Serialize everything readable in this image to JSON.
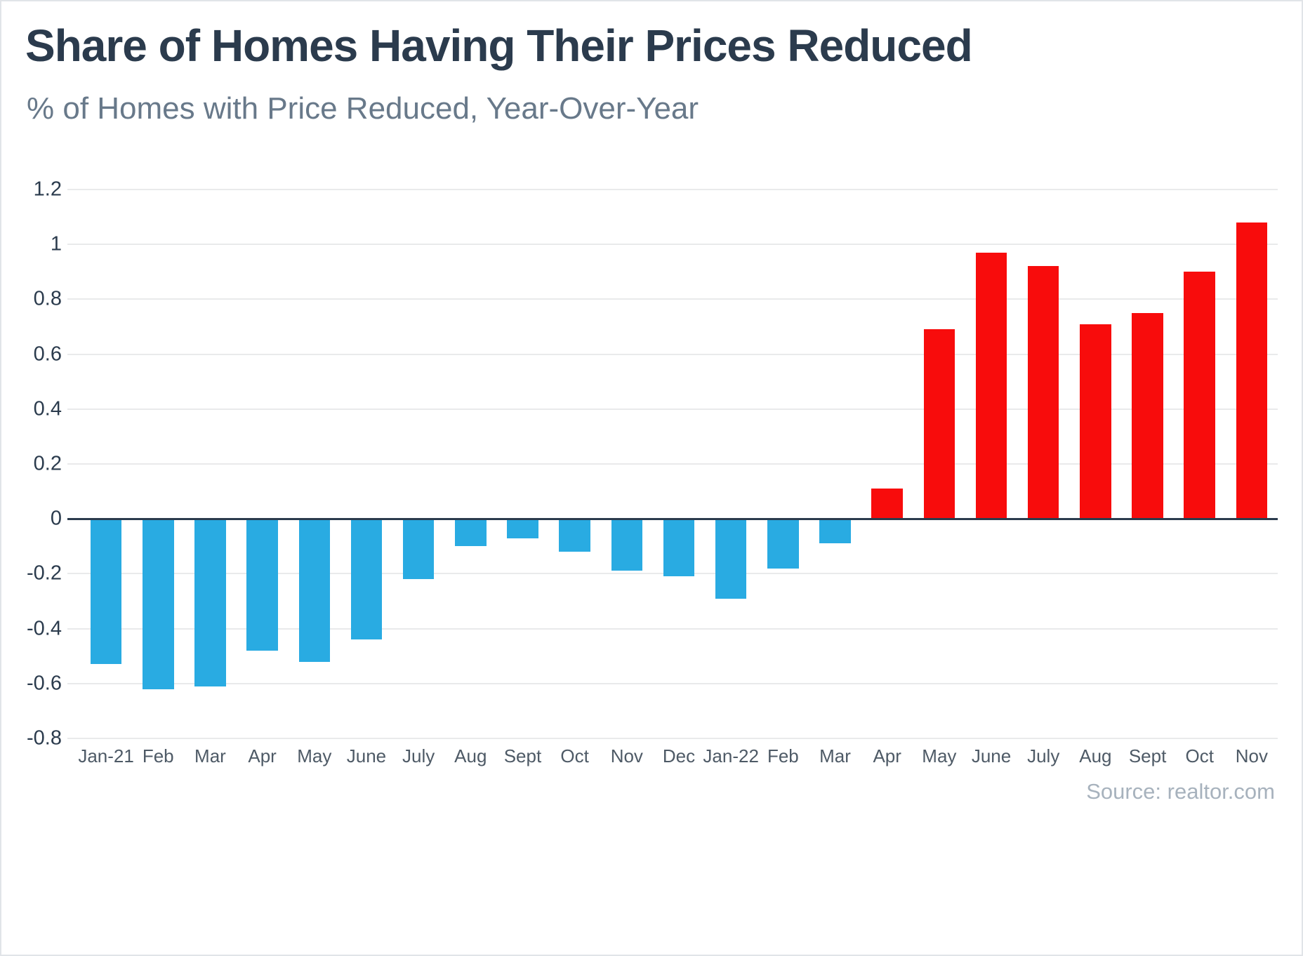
{
  "header": {
    "title": "Share of Homes Having Their Prices Reduced",
    "subtitle": "% of Homes with Price Reduced, Year-Over-Year"
  },
  "footer": {
    "source": "Source: realtor.com"
  },
  "chart_data": {
    "type": "bar",
    "title": "Share of Homes Having Their Prices Reduced",
    "subtitle": "% of Homes with Price Reduced, Year-Over-Year",
    "categories": [
      "Jan-21",
      "Feb",
      "Mar",
      "Apr",
      "May",
      "June",
      "July",
      "Aug",
      "Sept",
      "Oct",
      "Nov",
      "Dec",
      "Jan-22",
      "Feb",
      "Mar",
      "Apr",
      "May",
      "June",
      "July",
      "Aug",
      "Sept",
      "Oct",
      "Nov"
    ],
    "values": [
      -0.53,
      -0.62,
      -0.61,
      -0.48,
      -0.52,
      -0.44,
      -0.22,
      -0.1,
      -0.07,
      -0.12,
      -0.19,
      -0.21,
      -0.29,
      -0.18,
      -0.09,
      0.11,
      0.69,
      0.97,
      0.92,
      0.71,
      0.75,
      0.9,
      1.08
    ],
    "ylim": [
      -0.8,
      1.2
    ],
    "yticks": [
      1.2,
      1,
      0.8,
      0.6,
      0.4,
      0.2,
      0,
      -0.2,
      -0.4,
      -0.6,
      -0.8
    ],
    "grid": true,
    "legend": "none",
    "colors": {
      "positive": "#f80c0c",
      "negative": "#29abe2"
    },
    "source": "Source: realtor.com"
  }
}
